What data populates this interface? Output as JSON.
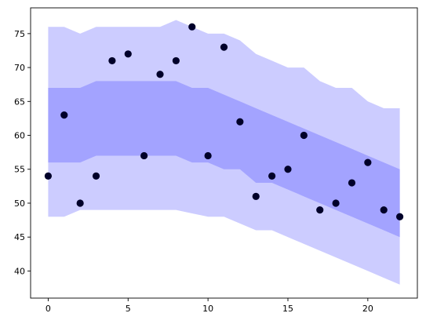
{
  "chart_data": {
    "type": "scatter",
    "title": "",
    "xlabel": "",
    "ylabel": "",
    "xlim": [
      -1.1,
      23.1
    ],
    "ylim": [
      36.0,
      78.8
    ],
    "xticks": [
      0,
      5,
      10,
      15,
      20
    ],
    "yticks": [
      40,
      45,
      50,
      55,
      60,
      65,
      70,
      75
    ],
    "grid": false,
    "points": {
      "x": [
        0,
        1,
        2,
        3,
        4,
        5,
        6,
        7,
        8,
        9,
        10,
        11,
        12,
        13,
        14,
        15,
        16,
        17,
        18,
        19,
        20,
        21,
        22
      ],
      "y": [
        54,
        63,
        50,
        54,
        71,
        72,
        57,
        69,
        71,
        76,
        57,
        73,
        62,
        51,
        54,
        55,
        60,
        49,
        50,
        53,
        56,
        49,
        48
      ]
    },
    "bands": [
      {
        "x": [
          0,
          1,
          2,
          3,
          4,
          5,
          6,
          7,
          8,
          9,
          10,
          11,
          12,
          13,
          14,
          15,
          16,
          17,
          18,
          19,
          20,
          21,
          22
        ],
        "upper": [
          76,
          76,
          75,
          76,
          76,
          76,
          76,
          76,
          77,
          76,
          75,
          75,
          74,
          72,
          71,
          70,
          70,
          68,
          67,
          67,
          65,
          64,
          64
        ],
        "lower": [
          48,
          48,
          49,
          49,
          49,
          49,
          49,
          49,
          49,
          48.5,
          48,
          48,
          47,
          46,
          46,
          45,
          44,
          43,
          42,
          41,
          40,
          39,
          38
        ]
      },
      {
        "x": [
          0,
          1,
          2,
          3,
          4,
          5,
          6,
          7,
          8,
          9,
          10,
          11,
          12,
          13,
          14,
          15,
          16,
          17,
          18,
          19,
          20,
          21,
          22
        ],
        "upper": [
          67,
          67,
          67,
          68,
          68,
          68,
          68,
          68,
          68,
          67,
          67,
          66,
          65,
          64,
          63,
          62,
          61,
          60,
          59,
          58,
          57,
          56,
          55
        ],
        "lower": [
          56,
          56,
          56,
          57,
          57,
          57,
          57,
          57,
          57,
          56,
          56,
          55,
          55,
          53,
          53,
          52,
          51,
          50,
          49,
          48,
          47,
          46,
          45
        ]
      }
    ],
    "colors": {
      "outer_band": "#ccccff",
      "inner_band": "#a3a3ff",
      "points": "#00002a",
      "axes": "#000000"
    }
  }
}
